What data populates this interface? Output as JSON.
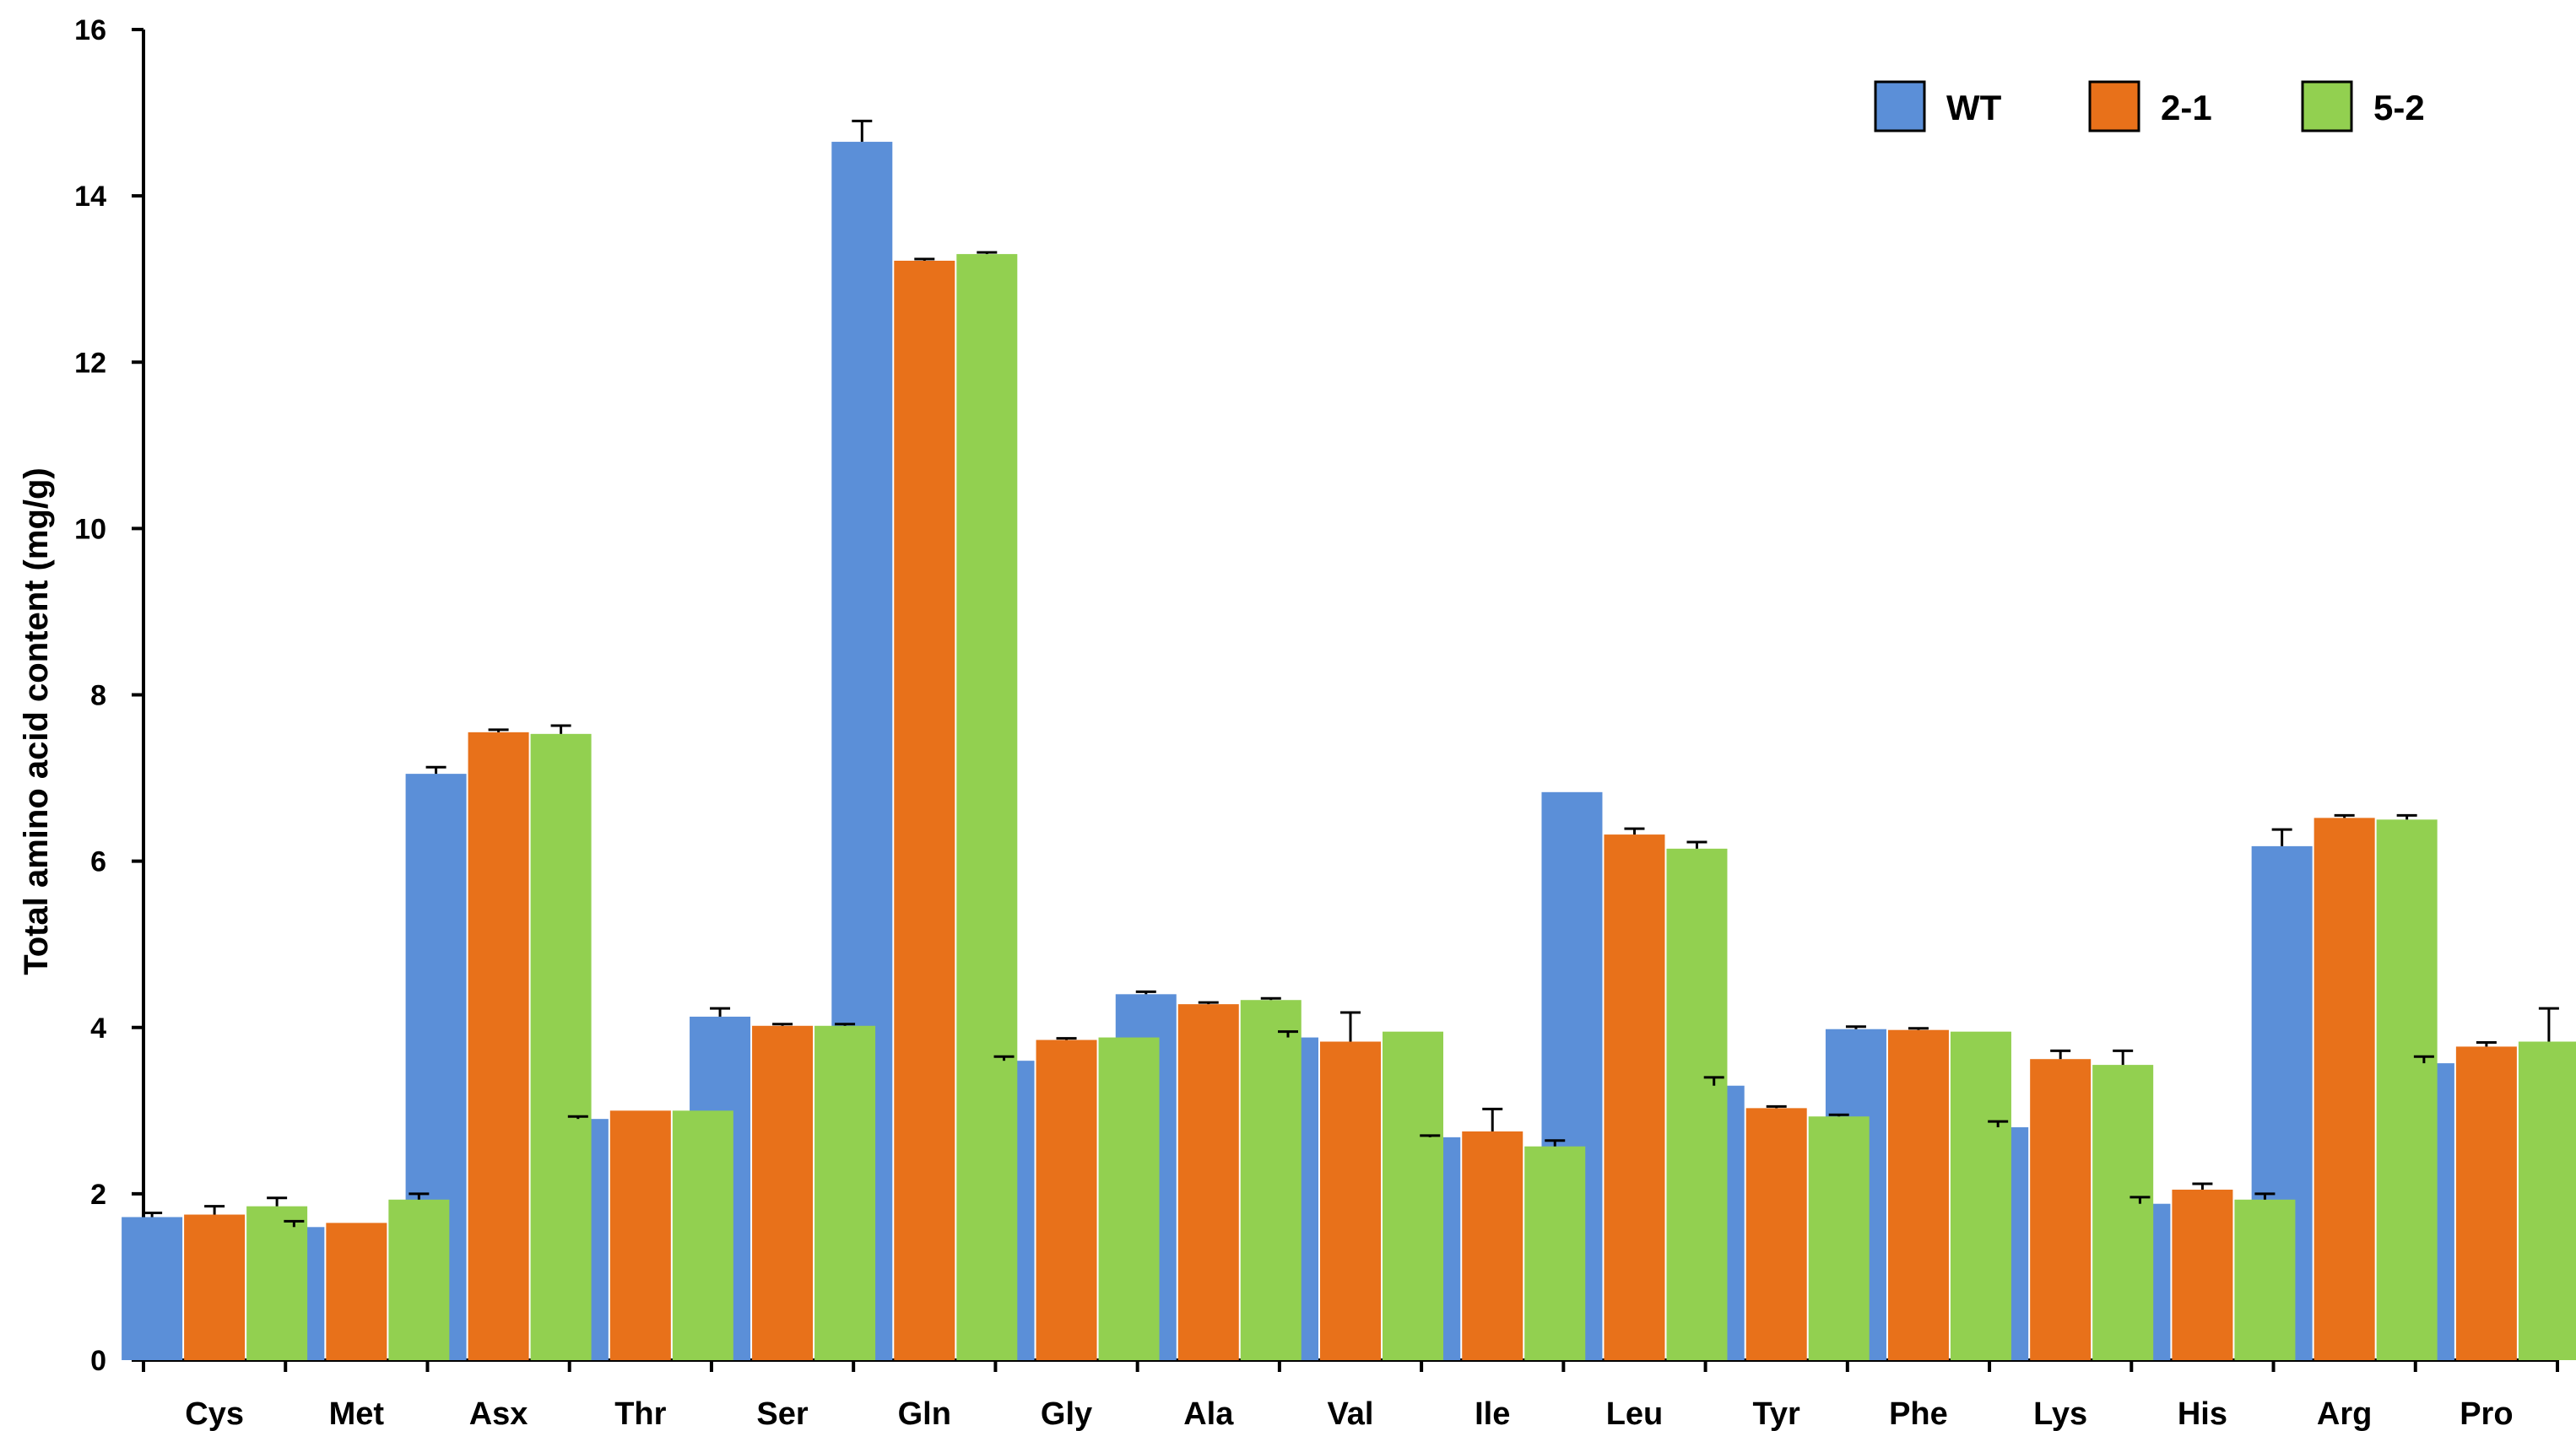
{
  "chart_data": {
    "type": "bar",
    "title": "",
    "xlabel": "",
    "ylabel": "Total amino acid content (mg/g)",
    "ylim": [
      0,
      16
    ],
    "yticks": [
      0,
      2,
      4,
      6,
      8,
      10,
      12,
      14,
      16
    ],
    "grid": false,
    "legend_position": "top-right",
    "categories": [
      "Cys",
      "Met",
      "Asx",
      "Thr",
      "Ser",
      "Gln",
      "Gly",
      "Ala",
      "Val",
      "Ile",
      "Leu",
      "Tyr",
      "Phe",
      "Lys",
      "His",
      "Arg",
      "Pro"
    ],
    "series": [
      {
        "name": "WT",
        "color": "#5b8fd8",
        "values": [
          1.72,
          1.6,
          7.05,
          2.9,
          4.13,
          14.65,
          3.6,
          4.4,
          3.88,
          2.68,
          6.83,
          3.3,
          3.98,
          2.8,
          1.88,
          6.18,
          3.57
        ],
        "errors": [
          0.05,
          0.07,
          0.08,
          0.03,
          0.1,
          0.25,
          0.05,
          0.03,
          0.07,
          0.02,
          0.0,
          0.1,
          0.03,
          0.07,
          0.08,
          0.2,
          0.08
        ]
      },
      {
        "name": "2-1",
        "color": "#e8711a",
        "values": [
          1.75,
          1.65,
          7.55,
          3.0,
          4.02,
          13.22,
          3.85,
          4.28,
          3.83,
          2.75,
          6.32,
          3.03,
          3.97,
          3.62,
          2.05,
          6.52,
          3.77
        ],
        "errors": [
          0.1,
          0.0,
          0.03,
          0.0,
          0.02,
          0.02,
          0.02,
          0.02,
          0.35,
          0.27,
          0.07,
          0.02,
          0.02,
          0.1,
          0.07,
          0.03,
          0.05
        ]
      },
      {
        "name": "5-2",
        "color": "#92d050",
        "values": [
          1.85,
          1.93,
          7.53,
          3.0,
          4.02,
          13.3,
          3.88,
          4.33,
          3.95,
          2.57,
          6.15,
          2.93,
          3.95,
          3.55,
          1.93,
          6.5,
          3.83
        ],
        "errors": [
          0.1,
          0.07,
          0.1,
          0.0,
          0.02,
          0.02,
          0.0,
          0.02,
          0.0,
          0.07,
          0.08,
          0.02,
          0.0,
          0.17,
          0.07,
          0.05,
          0.4
        ]
      }
    ]
  }
}
